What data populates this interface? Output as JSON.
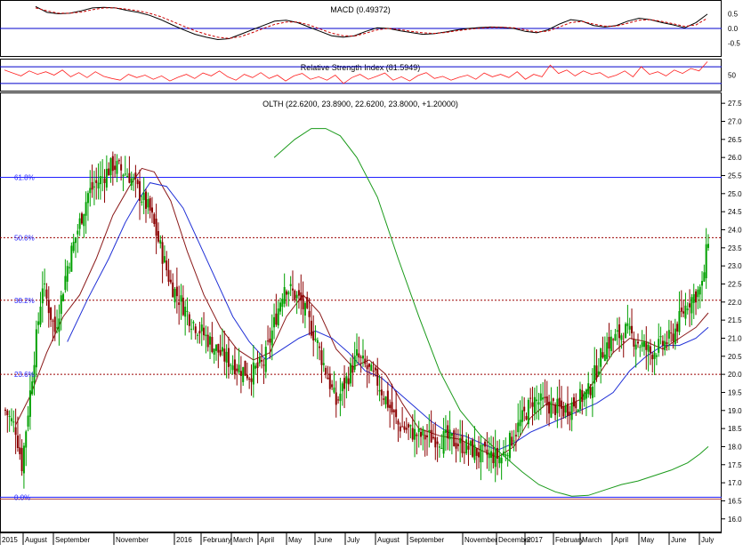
{
  "colors": {
    "up_candle": "#00a000",
    "down_candle": "#8b0000",
    "ma_short": "#8b1a1a",
    "ma_medium": "#1f2fd6",
    "ma_long": "#1a9a1a",
    "fib_solid": "#2020ff",
    "fib_dotted": "#9b0000",
    "macd_line": "#000000",
    "macd_signal": "#cc0000",
    "rsi_line": "#ff2020",
    "panel_line": "#0000cc"
  },
  "chart_data": [
    {
      "type": "line",
      "panel": "macd",
      "title": "MACD (0.49372)",
      "y_ticks": [
        "0.5",
        "0.0",
        "-0.5"
      ],
      "ylim": [
        -0.85,
        0.85
      ],
      "reference_lines": [
        0.0
      ],
      "series": [
        {
          "name": "MACD",
          "values": [
            0.75,
            0.55,
            0.5,
            0.52,
            0.6,
            0.7,
            0.72,
            0.7,
            0.62,
            0.55,
            0.45,
            0.3,
            0.12,
            -0.05,
            -0.2,
            -0.3,
            -0.38,
            -0.35,
            -0.2,
            -0.05,
            0.1,
            0.25,
            0.28,
            0.2,
            0.05,
            -0.1,
            -0.25,
            -0.3,
            -0.25,
            -0.1,
            0.02,
            0.0,
            -0.08,
            -0.14,
            -0.2,
            -0.18,
            -0.12,
            -0.05,
            0.0,
            0.03,
            0.05,
            0.04,
            0.0,
            -0.1,
            -0.15,
            -0.05,
            0.15,
            0.3,
            0.25,
            0.1,
            0.05,
            0.1,
            0.25,
            0.35,
            0.3,
            0.2,
            0.12,
            0.02,
            0.2,
            0.49
          ]
        },
        {
          "name": "Signal",
          "values": [
            0.7,
            0.6,
            0.52,
            0.52,
            0.56,
            0.64,
            0.7,
            0.7,
            0.66,
            0.6,
            0.52,
            0.4,
            0.24,
            0.08,
            -0.08,
            -0.2,
            -0.3,
            -0.34,
            -0.28,
            -0.15,
            0.0,
            0.14,
            0.22,
            0.22,
            0.12,
            -0.02,
            -0.16,
            -0.25,
            -0.26,
            -0.16,
            -0.05,
            0.0,
            -0.04,
            -0.1,
            -0.15,
            -0.17,
            -0.14,
            -0.08,
            -0.03,
            0.01,
            0.04,
            0.04,
            0.02,
            -0.05,
            -0.12,
            -0.09,
            0.05,
            0.2,
            0.24,
            0.15,
            0.08,
            0.08,
            0.18,
            0.28,
            0.3,
            0.24,
            0.16,
            0.07,
            0.12,
            0.35
          ]
        }
      ]
    },
    {
      "type": "line",
      "panel": "rsi",
      "title": "Relative Strength Index (81.5949)",
      "y_ticks": [
        "50"
      ],
      "ylim": [
        15,
        85
      ],
      "reference_lines": [
        70,
        30
      ],
      "series": [
        {
          "name": "RSI",
          "values": [
            62,
            55,
            48,
            60,
            52,
            58,
            50,
            62,
            46,
            56,
            44,
            58,
            47,
            42,
            38,
            52,
            44,
            50,
            40,
            48,
            36,
            45,
            52,
            42,
            55,
            48,
            60,
            46,
            38,
            52,
            44,
            56,
            42,
            50,
            36,
            48,
            54,
            40,
            46,
            38,
            50,
            30,
            44,
            52,
            40,
            47,
            55,
            38,
            46,
            36,
            49,
            56,
            42,
            47,
            38,
            45,
            50,
            40,
            55,
            46,
            52,
            44,
            58,
            40,
            52,
            46,
            74,
            54,
            62,
            48,
            60,
            52,
            56,
            44,
            50,
            60,
            46,
            70,
            52,
            58,
            48,
            62,
            54,
            66,
            60,
            82
          ]
        }
      ]
    },
    {
      "type": "candlestick",
      "panel": "price",
      "title": "OLTH (22.6200, 23.8900, 22.6200, 23.8000, +1.20000)",
      "y_ticks": [
        "16.0",
        "16.5",
        "17.0",
        "17.5",
        "18.0",
        "18.5",
        "19.0",
        "19.5",
        "20.0",
        "20.5",
        "21.0",
        "21.5",
        "22.0",
        "22.5",
        "23.0",
        "23.5",
        "24.0",
        "24.5",
        "25.0",
        "25.5",
        "26.0",
        "26.5",
        "27.0",
        "27.5"
      ],
      "ylim": [
        15.65,
        27.75
      ],
      "x_labels": [
        "2015",
        "August",
        "September",
        "November",
        "2016",
        "February",
        "March",
        "April",
        "May",
        "June",
        "July",
        "August",
        "September",
        "November",
        "December",
        "2017",
        "February",
        "March",
        "April",
        "May",
        "June",
        "July"
      ],
      "close_waypoints": [
        [
          0,
          19.0
        ],
        [
          5,
          18.5
        ],
        [
          8,
          17.5
        ],
        [
          12,
          19.5
        ],
        [
          18,
          22.5
        ],
        [
          24,
          21.2
        ],
        [
          30,
          23.0
        ],
        [
          40,
          25.0
        ],
        [
          52,
          25.8
        ],
        [
          60,
          25.5
        ],
        [
          70,
          24.5
        ],
        [
          80,
          22.5
        ],
        [
          90,
          21.5
        ],
        [
          105,
          20.5
        ],
        [
          118,
          20.0
        ],
        [
          125,
          20.3
        ],
        [
          135,
          22.5
        ],
        [
          143,
          22.0
        ],
        [
          150,
          21.0
        ],
        [
          160,
          19.2
        ],
        [
          170,
          20.5
        ],
        [
          180,
          19.8
        ],
        [
          190,
          18.6
        ],
        [
          200,
          18.3
        ],
        [
          215,
          18.2
        ],
        [
          230,
          17.8
        ],
        [
          240,
          17.7
        ],
        [
          255,
          19.3
        ],
        [
          270,
          19.0
        ],
        [
          282,
          19.5
        ],
        [
          290,
          20.8
        ],
        [
          300,
          21.2
        ],
        [
          312,
          20.6
        ],
        [
          322,
          21.0
        ],
        [
          330,
          22.0
        ],
        [
          337,
          22.4
        ],
        [
          340,
          23.8
        ]
      ],
      "fib_levels": [
        {
          "label": "61.8%",
          "value": 25.45,
          "style": "solid"
        },
        {
          "label": "50.0%",
          "value": 23.78,
          "style": "dotted"
        },
        {
          "label": "38.2%",
          "value": 22.05,
          "style": "dotted"
        },
        {
          "label": "23.6%",
          "value": 20.0,
          "style": "dotted"
        },
        {
          "label": "0.0%",
          "value": 16.6,
          "style": "solid"
        }
      ],
      "moving_averages": [
        {
          "name": "short",
          "color_key": "ma_short",
          "values": [
            [
              5,
              18.6
            ],
            [
              12,
              19.4
            ],
            [
              20,
              20.6
            ],
            [
              28,
              21.6
            ],
            [
              36,
              22.2
            ],
            [
              44,
              23.2
            ],
            [
              52,
              24.4
            ],
            [
              60,
              25.2
            ],
            [
              66,
              25.7
            ],
            [
              72,
              25.6
            ],
            [
              80,
              24.8
            ],
            [
              88,
              23.4
            ],
            [
              96,
              22.2
            ],
            [
              104,
              21.3
            ],
            [
              112,
              20.7
            ],
            [
              120,
              20.4
            ],
            [
              128,
              20.6
            ],
            [
              136,
              21.6
            ],
            [
              144,
              22.2
            ],
            [
              152,
              21.7
            ],
            [
              160,
              20.7
            ],
            [
              168,
              20.2
            ],
            [
              176,
              20.4
            ],
            [
              184,
              20.0
            ],
            [
              192,
              19.2
            ],
            [
              200,
              18.5
            ],
            [
              210,
              18.3
            ],
            [
              220,
              18.2
            ],
            [
              230,
              17.9
            ],
            [
              238,
              17.7
            ],
            [
              246,
              18.0
            ],
            [
              254,
              18.8
            ],
            [
              262,
              19.2
            ],
            [
              270,
              19.1
            ],
            [
              278,
              19.3
            ],
            [
              286,
              19.9
            ],
            [
              294,
              20.6
            ],
            [
              302,
              21.0
            ],
            [
              310,
              20.9
            ],
            [
              318,
              20.7
            ],
            [
              326,
              21.0
            ],
            [
              334,
              21.3
            ],
            [
              340,
              21.7
            ]
          ]
        },
        {
          "name": "medium",
          "color_key": "ma_medium",
          "values": [
            [
              30,
              20.9
            ],
            [
              40,
              22.1
            ],
            [
              50,
              23.2
            ],
            [
              58,
              24.2
            ],
            [
              64,
              24.8
            ],
            [
              70,
              25.3
            ],
            [
              78,
              25.2
            ],
            [
              86,
              24.6
            ],
            [
              94,
              23.6
            ],
            [
              102,
              22.6
            ],
            [
              110,
              21.6
            ],
            [
              118,
              20.9
            ],
            [
              126,
              20.4
            ],
            [
              134,
              20.7
            ],
            [
              142,
              21.0
            ],
            [
              150,
              21.2
            ],
            [
              158,
              21.0
            ],
            [
              166,
              20.6
            ],
            [
              174,
              20.1
            ],
            [
              182,
              19.9
            ],
            [
              190,
              19.5
            ],
            [
              198,
              19.1
            ],
            [
              206,
              18.7
            ],
            [
              214,
              18.4
            ],
            [
              222,
              18.3
            ],
            [
              230,
              18.1
            ],
            [
              238,
              17.9
            ],
            [
              246,
              18.1
            ],
            [
              254,
              18.4
            ],
            [
              262,
              18.6
            ],
            [
              270,
              18.8
            ],
            [
              278,
              19.0
            ],
            [
              286,
              19.2
            ],
            [
              294,
              19.5
            ],
            [
              302,
              20.1
            ],
            [
              310,
              20.5
            ],
            [
              318,
              20.8
            ],
            [
              326,
              20.8
            ],
            [
              334,
              21.0
            ],
            [
              340,
              21.3
            ]
          ]
        },
        {
          "name": "long",
          "color_key": "ma_long",
          "values": [
            [
              130,
              26.0
            ],
            [
              140,
              26.5
            ],
            [
              148,
              26.8
            ],
            [
              155,
              26.8
            ],
            [
              162,
              26.6
            ],
            [
              170,
              26.0
            ],
            [
              180,
              24.9
            ],
            [
              190,
              23.2
            ],
            [
              200,
              21.6
            ],
            [
              210,
              20.1
            ],
            [
              220,
              19.0
            ],
            [
              230,
              18.3
            ],
            [
              240,
              17.8
            ],
            [
              250,
              17.3
            ],
            [
              258,
              16.95
            ],
            [
              266,
              16.75
            ],
            [
              274,
              16.63
            ],
            [
              282,
              16.65
            ],
            [
              290,
              16.8
            ],
            [
              298,
              16.95
            ],
            [
              306,
              17.05
            ],
            [
              314,
              17.2
            ],
            [
              322,
              17.35
            ],
            [
              330,
              17.55
            ],
            [
              336,
              17.8
            ],
            [
              340,
              18.0
            ]
          ]
        }
      ]
    }
  ]
}
